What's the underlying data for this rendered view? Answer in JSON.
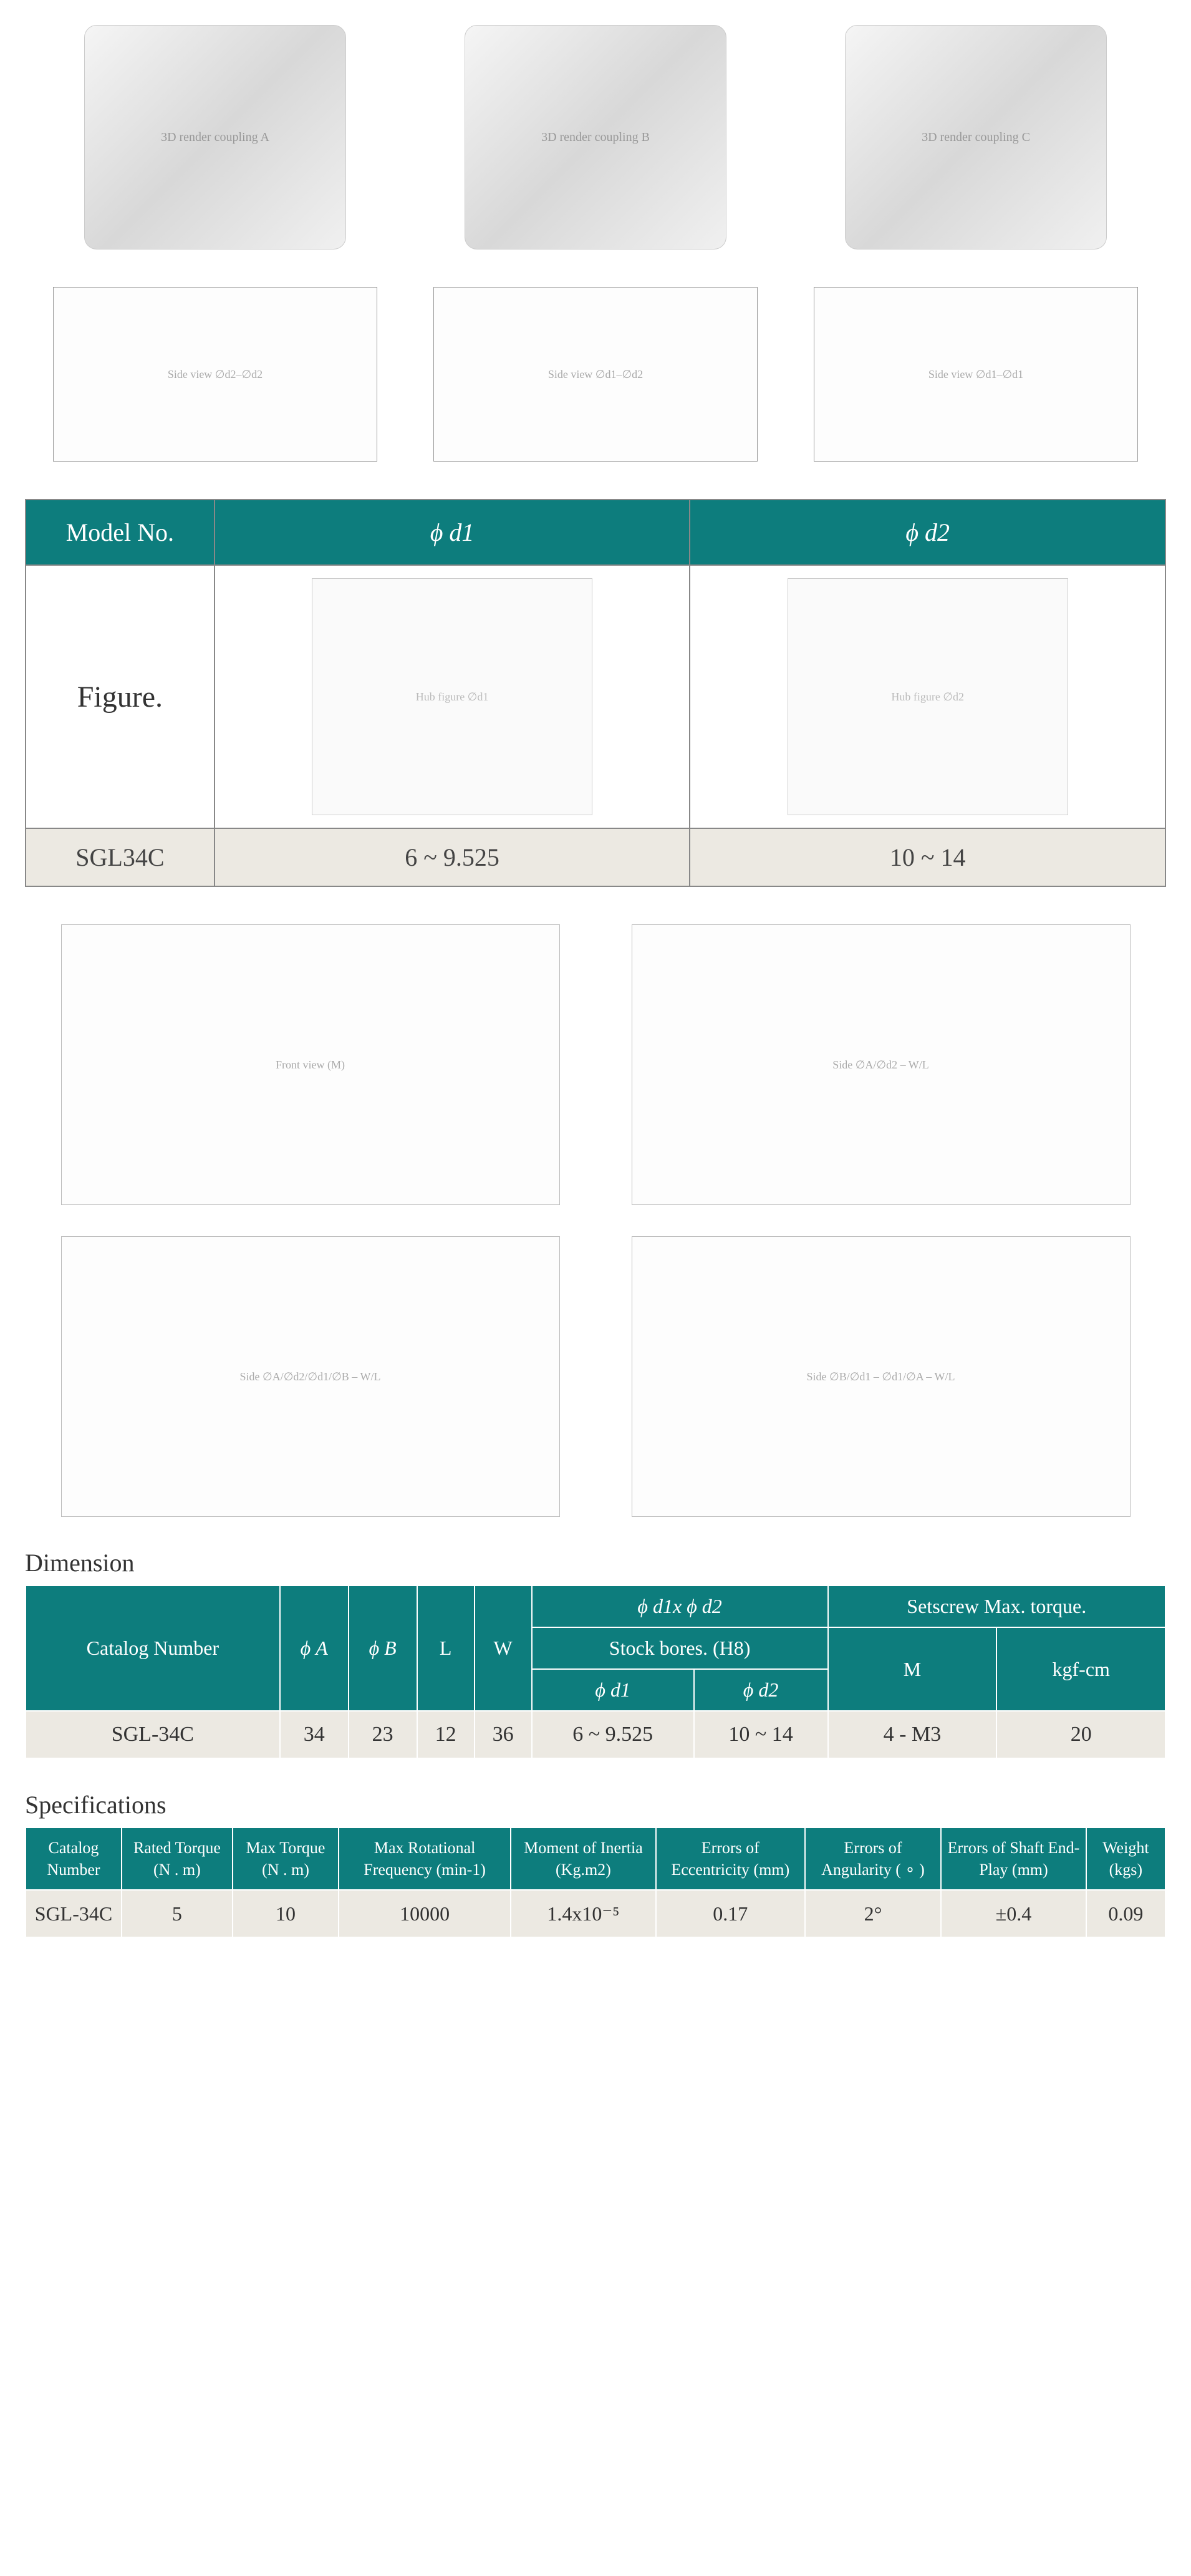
{
  "colors": {
    "header_bg": "#0d7d7d",
    "header_text": "#ffffff",
    "data_bg": "#ece9e2",
    "border": "#888888",
    "inner_border": "#ffffff",
    "text": "#333333"
  },
  "renders": {
    "alt1": "3D render coupling A",
    "alt2": "3D render coupling B",
    "alt3": "3D render coupling C"
  },
  "diagrams": {
    "side1": "Side view ∅d2–∅d2",
    "side2": "Side view ∅d1–∅d2",
    "side3": "Side view ∅d1–∅d1",
    "fig_d1": "Hub figure ∅d1",
    "fig_d2": "Hub figure ∅d2",
    "dimA": "Front view (M)",
    "dimB": "Side ∅A/∅d2 – W/L",
    "dimC": "Side ∅A/∅d2/∅d1/∅B – W/L",
    "dimD": "Side ∅B/∅d1 – ∅d1/∅A – W/L"
  },
  "figure_table": {
    "headers": {
      "model": "Model No.",
      "d1": "ϕ d1",
      "d2": "ϕ d2"
    },
    "row_label": "Figure.",
    "data": {
      "model": "SGL34C",
      "d1": "6 ~ 9.525",
      "d2": "10 ~ 14"
    }
  },
  "dimension": {
    "title": "Dimension",
    "headers": {
      "catalog": "Catalog Number",
      "phiA": "ϕ A",
      "phiB": "ϕ B",
      "L": "L",
      "W": "W",
      "d1xd2": "ϕ d1x ϕ d2",
      "stock": "Stock bores. (H8)",
      "phid1": "ϕ d1",
      "phid2": "ϕ d2",
      "setscrew": "Setscrew Max. torque.",
      "M": "M",
      "kgfcm": "kgf-cm"
    },
    "row": {
      "catalog": "SGL-34C",
      "phiA": "34",
      "phiB": "23",
      "L": "12",
      "W": "36",
      "phid1": "6 ~ 9.525",
      "phid2": "10 ~ 14",
      "M": "4 - M3",
      "kgfcm": "20"
    }
  },
  "specifications": {
    "title": "Specifications",
    "headers": {
      "catalog": "Catalog Number",
      "rated": "Rated Torque (N . m)",
      "max": "Max Torque (N . m)",
      "rot": "Max Rotational Frequency (min-1)",
      "inertia": "Moment of Inertia (Kg.m2)",
      "ecc": "Errors of Eccentricity (mm)",
      "ang": "Errors of Angularity ( ∘ )",
      "endplay": "Errors of Shaft End-Play (mm)",
      "weight": "Weight (kgs)"
    },
    "row": {
      "catalog": "SGL-34C",
      "rated": "5",
      "max": "10",
      "rot": "10000",
      "inertia": "1.4x10⁻⁵",
      "ecc": "0.17",
      "ang": "2°",
      "endplay": "±0.4",
      "weight": "0.09"
    }
  }
}
